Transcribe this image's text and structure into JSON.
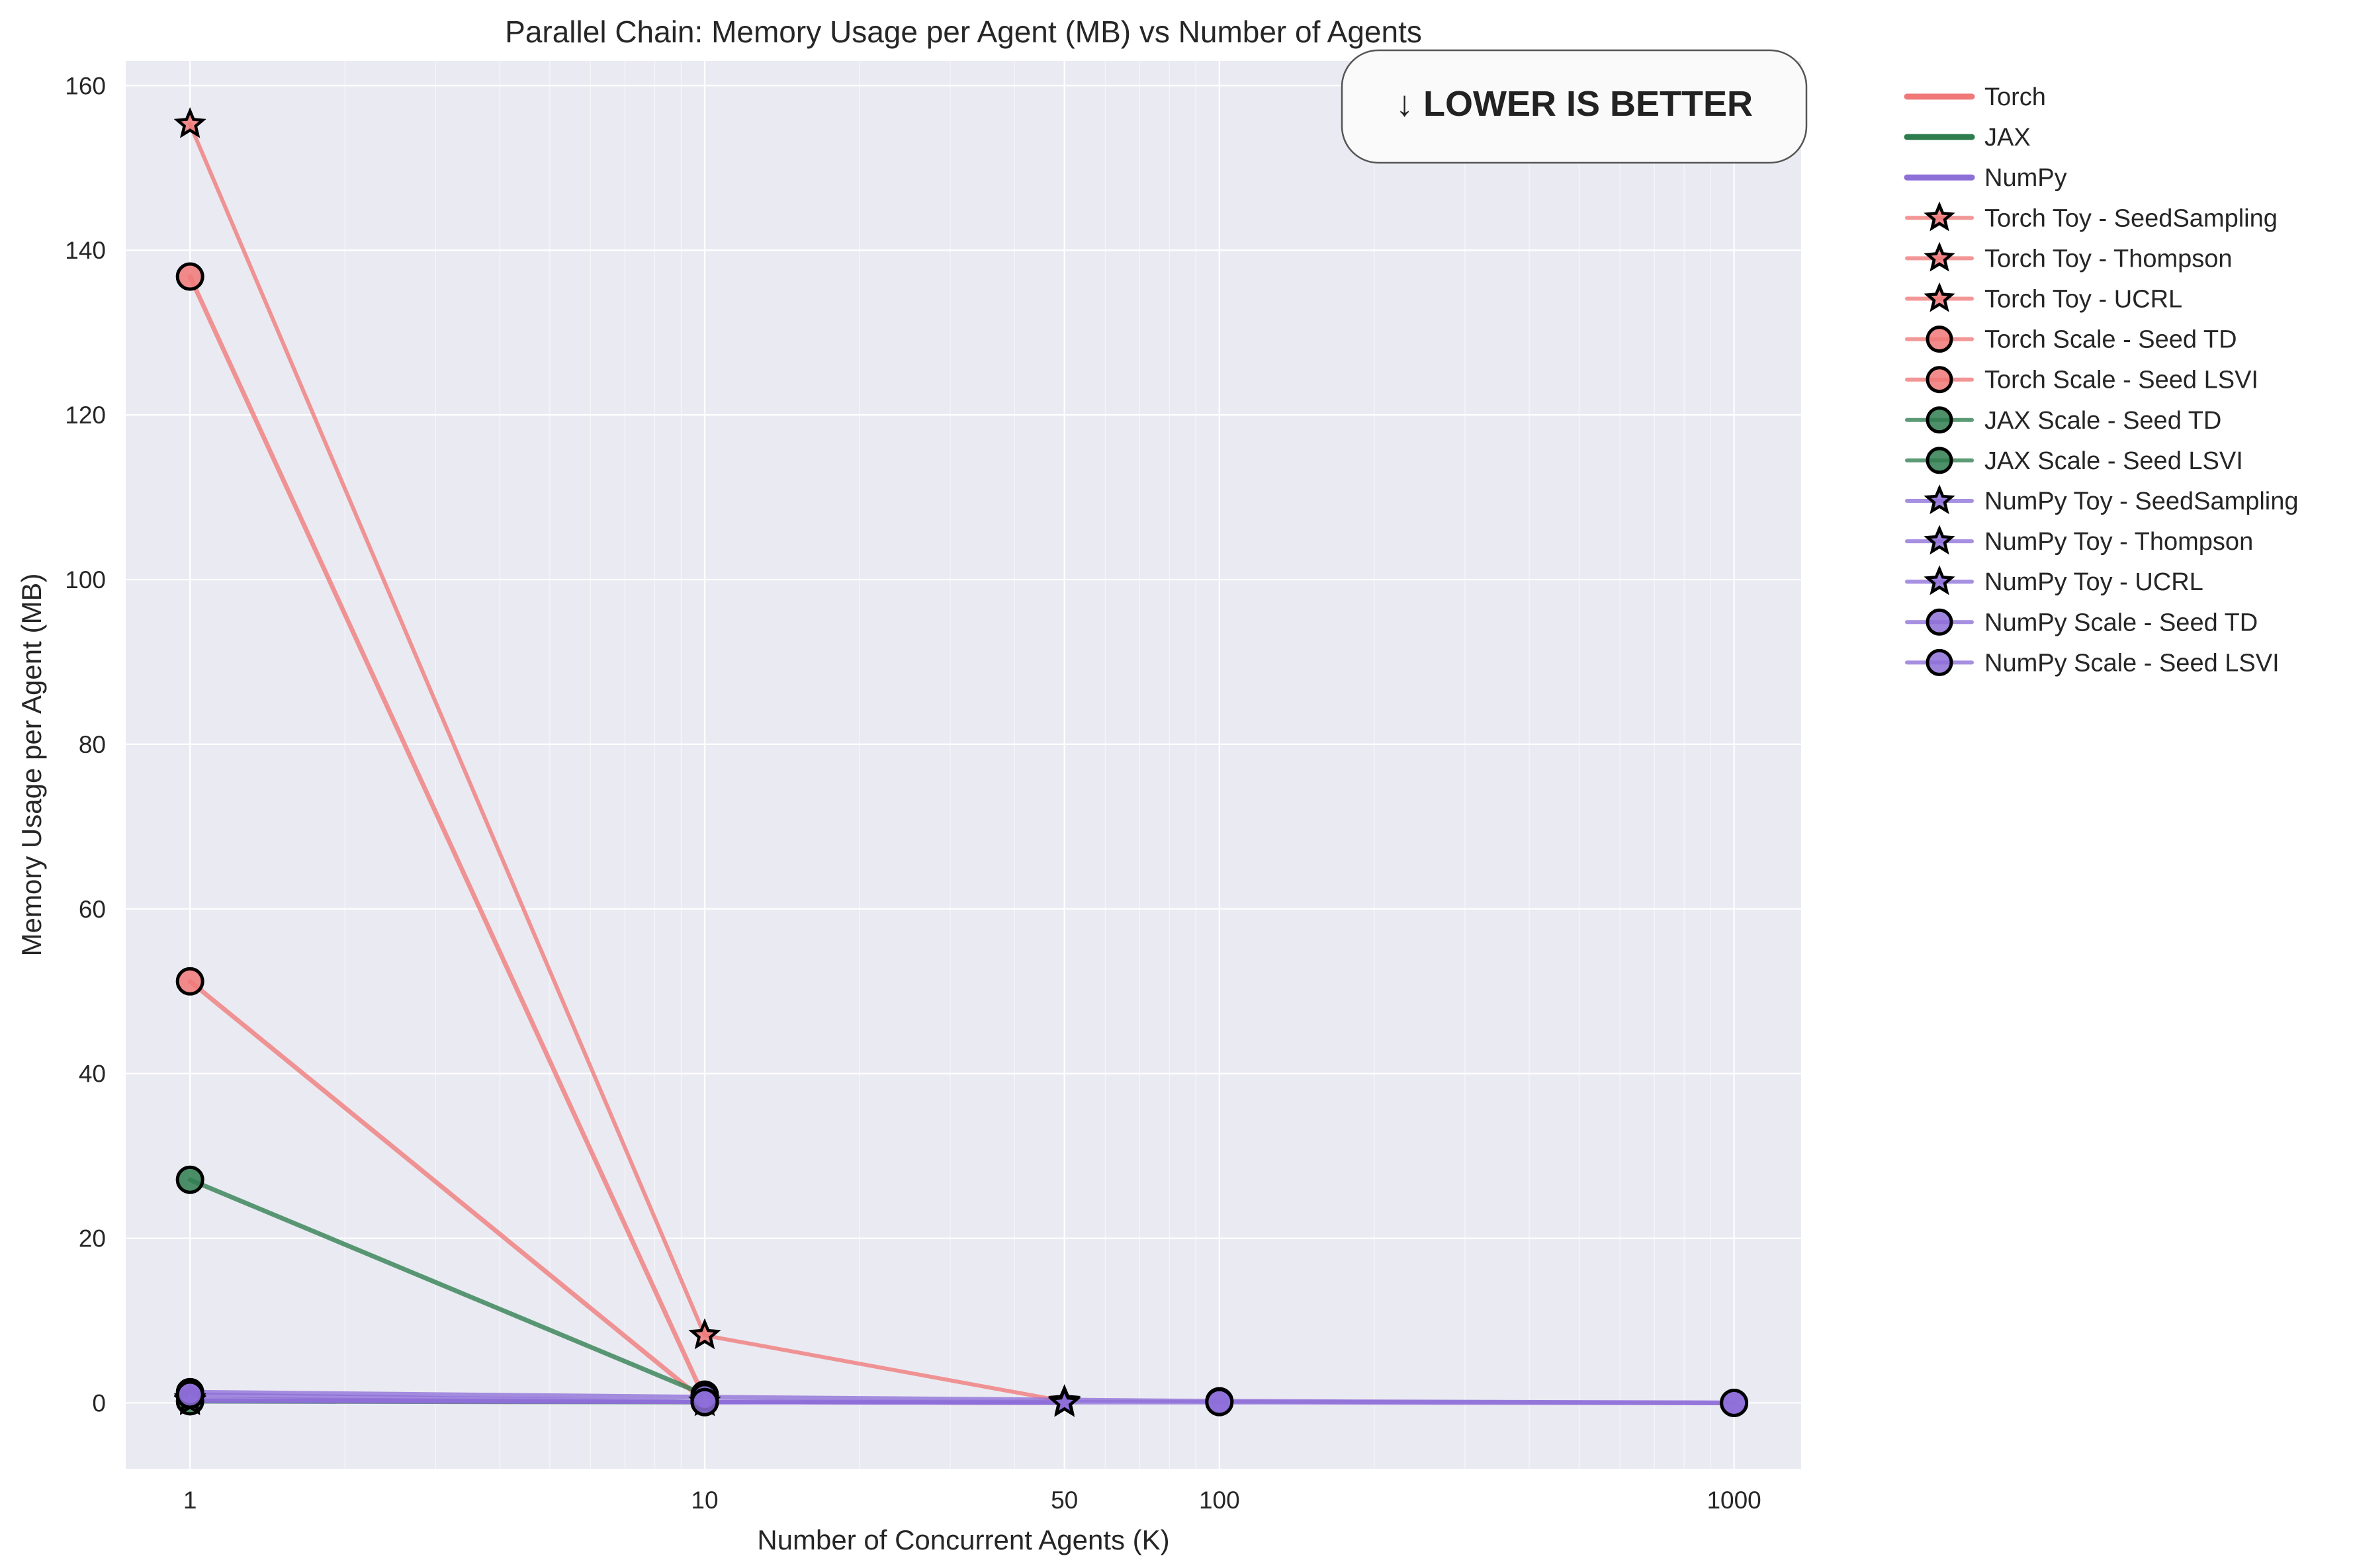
{
  "chart_data": {
    "type": "line",
    "title": "Parallel Chain: Memory Usage per Agent (MB) vs Number of Agents",
    "xlabel": "Number of Concurrent Agents (K)",
    "ylabel": "Memory Usage per Agent (MB)",
    "xscale": "log",
    "xlim": [
      0.75,
      1350
    ],
    "ylim": [
      -8,
      163
    ],
    "xticks": [
      1,
      10,
      50,
      100,
      1000
    ],
    "xtick_labels": [
      "1",
      "10",
      "50",
      "100",
      "1000"
    ],
    "yticks": [
      0,
      20,
      40,
      60,
      80,
      100,
      120,
      140,
      160
    ],
    "ytick_labels": [
      "0",
      "20",
      "40",
      "60",
      "80",
      "100",
      "120",
      "140",
      "160"
    ],
    "grid": true,
    "legend_placement": "outside-right",
    "annotation": "↓ LOWER IS BETTER",
    "colors": {
      "torch": "#f07878",
      "jax": "#2e7d4f",
      "numpy": "#8e6fd8",
      "background": "#eaeaf2",
      "grid": "#ffffff"
    },
    "legend_groups": [
      {
        "name": "Torch",
        "color": "#f07878"
      },
      {
        "name": "JAX",
        "color": "#2e7d4f"
      },
      {
        "name": "NumPy",
        "color": "#8e6fd8"
      }
    ],
    "series": [
      {
        "name": "Torch Toy - SeedSampling",
        "framework": "torch",
        "marker": "star",
        "x": [
          1,
          10,
          50
        ],
        "y": [
          155.3,
          8.2,
          0.2
        ]
      },
      {
        "name": "Torch Toy - Thompson",
        "framework": "torch",
        "marker": "star",
        "x": [
          1,
          10,
          50
        ],
        "y": [
          0.3,
          0.1,
          0.0
        ]
      },
      {
        "name": "Torch Toy - UCRL",
        "framework": "torch",
        "marker": "star",
        "x": [
          1,
          10,
          50
        ],
        "y": [
          0.2,
          0.1,
          0.0
        ]
      },
      {
        "name": "Torch Scale - Seed TD",
        "framework": "torch",
        "marker": "circle",
        "x": [
          1,
          10
        ],
        "y": [
          136.8,
          0.5
        ]
      },
      {
        "name": "Torch Scale - Seed LSVI",
        "framework": "torch",
        "marker": "circle",
        "x": [
          1,
          10
        ],
        "y": [
          51.2,
          0.2
        ]
      },
      {
        "name": "JAX Scale - Seed TD",
        "framework": "jax",
        "marker": "circle",
        "x": [
          1,
          10
        ],
        "y": [
          27.1,
          1.0
        ]
      },
      {
        "name": "JAX Scale - Seed LSVI",
        "framework": "jax",
        "marker": "circle",
        "x": [
          1,
          10
        ],
        "y": [
          0.2,
          0.1
        ]
      },
      {
        "name": "NumPy Toy - SeedSampling",
        "framework": "numpy",
        "marker": "star",
        "x": [
          1,
          10,
          50
        ],
        "y": [
          0.5,
          0.1,
          0.0
        ]
      },
      {
        "name": "NumPy Toy - Thompson",
        "framework": "numpy",
        "marker": "star",
        "x": [
          1,
          10,
          50
        ],
        "y": [
          0.3,
          0.1,
          0.0
        ]
      },
      {
        "name": "NumPy Toy - UCRL",
        "framework": "numpy",
        "marker": "star",
        "x": [
          1,
          10,
          50
        ],
        "y": [
          0.2,
          0.1,
          0.0
        ]
      },
      {
        "name": "NumPy Scale - Seed TD",
        "framework": "numpy",
        "marker": "circle",
        "x": [
          1,
          10,
          100,
          1000
        ],
        "y": [
          1.3,
          0.7,
          0.2,
          0.0
        ]
      },
      {
        "name": "NumPy Scale - Seed LSVI",
        "framework": "numpy",
        "marker": "circle",
        "x": [
          1,
          10,
          100,
          1000
        ],
        "y": [
          1.0,
          0.1,
          0.1,
          0.0
        ]
      }
    ]
  }
}
